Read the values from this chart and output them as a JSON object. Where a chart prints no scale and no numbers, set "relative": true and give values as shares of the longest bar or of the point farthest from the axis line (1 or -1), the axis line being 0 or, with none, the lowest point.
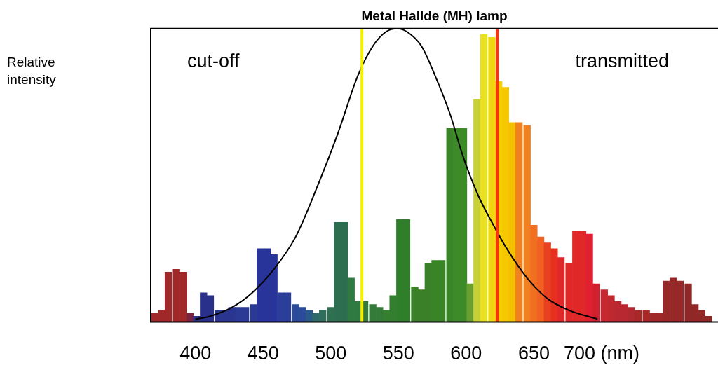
{
  "chart_data": {
    "type": "bar",
    "title": "Metal Halide (MH) lamp",
    "relative": true,
    "legend": false,
    "grid": false,
    "xlim": [
      367,
      786
    ],
    "xticks": [
      400,
      450,
      500,
      550,
      600,
      650,
      {
        "value": 700,
        "label": "700 (nm)"
      }
    ],
    "series": [
      {
        "x": [
          370,
          375,
          380,
          386,
          391,
          396,
          401,
          406,
          411,
          417,
          422,
          427,
          432,
          437,
          443,
          448,
          453,
          458,
          463,
          468,
          474,
          479,
          484,
          489,
          494,
          500,
          505,
          510,
          515,
          520,
          525,
          531,
          536,
          541,
          546,
          551,
          556,
          562,
          567,
          572,
          577,
          582,
          588,
          593,
          598,
          603,
          608,
          613,
          619,
          624,
          629,
          634,
          639,
          645,
          650,
          655,
          660,
          665,
          670,
          676,
          681,
          686,
          691,
          696,
          702,
          707,
          712,
          717,
          722,
          727,
          733,
          738,
          743,
          748,
          753,
          758,
          764,
          769,
          774,
          779
        ],
        "values": [
          0.03,
          0.04,
          0.17,
          0.18,
          0.17,
          0.03,
          0.02,
          0.1,
          0.09,
          0.04,
          0.04,
          0.05,
          0.05,
          0.05,
          0.06,
          0.25,
          0.25,
          0.23,
          0.1,
          0.1,
          0.06,
          0.05,
          0.04,
          0.03,
          0.04,
          0.05,
          0.34,
          0.34,
          0.15,
          0.07,
          0.07,
          0.06,
          0.05,
          0.04,
          0.09,
          0.35,
          0.35,
          0.12,
          0.11,
          0.2,
          0.21,
          0.21,
          0.66,
          0.66,
          0.66,
          0.13,
          0.76,
          0.98,
          0.97,
          0.82,
          0.8,
          0.68,
          0.68,
          0.67,
          0.33,
          0.29,
          0.27,
          0.25,
          0.22,
          0.2,
          0.31,
          0.31,
          0.3,
          0.13,
          0.11,
          0.09,
          0.07,
          0.06,
          0.05,
          0.04,
          0.04,
          0.03,
          0.03,
          0.14,
          0.15,
          0.14,
          0.13,
          0.06,
          0.04,
          0.02
        ],
        "colors": [
          "#a02828",
          "#a02828",
          "#a02828",
          "#a02828",
          "#a02828",
          "#7a2440",
          "#28308c",
          "#28308c",
          "#28308c",
          "#2a3590",
          "#2a3590",
          "#2a3590",
          "#2a3a95",
          "#2a3a95",
          "#2a3a95",
          "#28349a",
          "#28349a",
          "#28349a",
          "#2a3e9a",
          "#2a3e9a",
          "#2a4a9a",
          "#2a4a9a",
          "#2a5a8a",
          "#2e6a6a",
          "#2e6e5a",
          "#2e7050",
          "#2e6e50",
          "#2e6e50",
          "#2e7a40",
          "#2e7a40",
          "#347a38",
          "#347a38",
          "#347a38",
          "#347e30",
          "#347e30",
          "#2e7e2a",
          "#2e7e2a",
          "#3a8028",
          "#3a8028",
          "#3a8028",
          "#3a8428",
          "#3a8428",
          "#3a8428",
          "#3c8a28",
          "#3c8a28",
          "#6aa030",
          "#c8d038",
          "#e8e020",
          "#f0d810",
          "#f5d000",
          "#f5c800",
          "#f5c000",
          "#f08020",
          "#f08020",
          "#f07020",
          "#f06020",
          "#e84020",
          "#e83020",
          "#e02828",
          "#e02828",
          "#e02828",
          "#e02828",
          "#e02030",
          "#d02030",
          "#c82830",
          "#c02830",
          "#b82830",
          "#b82830",
          "#b02830",
          "#a82828",
          "#a82828",
          "#a02828",
          "#a02828",
          "#982828",
          "#982828",
          "#982828",
          "#902828",
          "#902828",
          "#902828",
          "#902828"
        ]
      },
      {
        "type": "line",
        "color": "#000000",
        "x": [
          400,
          411,
          427,
          442,
          458,
          474,
          489,
          505,
          520,
          531,
          541,
          549,
          556,
          567,
          577,
          588,
          598,
          609,
          619,
          630,
          645,
          660,
          676,
          697
        ],
        "values": [
          0.01,
          0.02,
          0.05,
          0.1,
          0.18,
          0.29,
          0.45,
          0.64,
          0.84,
          0.94,
          0.99,
          1.0,
          0.99,
          0.94,
          0.84,
          0.71,
          0.56,
          0.43,
          0.34,
          0.25,
          0.15,
          0.08,
          0.04,
          0.01
        ]
      }
    ],
    "ref_lines": [
      {
        "axis": "x",
        "value": 523,
        "color": "#f5f000"
      },
      {
        "axis": "x",
        "value": 623,
        "color": "#ff3010"
      }
    ],
    "annotations": [
      "Relative intensity",
      "cut-off",
      "transmitted"
    ]
  }
}
